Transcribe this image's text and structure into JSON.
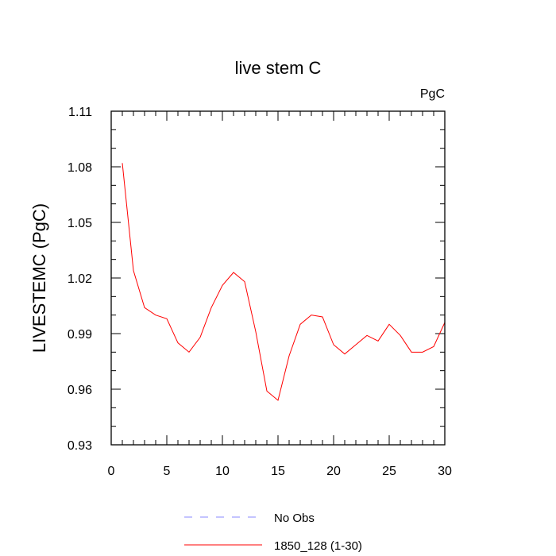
{
  "chart_data": {
    "type": "line",
    "title": "live stem C",
    "units_label": "PgC",
    "ylabel": "LIVESTEMC  (PgC)",
    "xlabel": "",
    "xlim": [
      0,
      30
    ],
    "ylim": [
      0.93,
      1.11
    ],
    "x_ticks": [
      0,
      5,
      10,
      15,
      20,
      25,
      30
    ],
    "y_ticks": [
      0.93,
      0.96,
      0.99,
      1.02,
      1.05,
      1.08,
      1.11
    ],
    "y_tick_labels": [
      "0.93",
      "0.96",
      "0.99",
      "1.02",
      "1.05",
      "1.08",
      "1.11"
    ],
    "grid": false,
    "legend_position": "bottom",
    "series": [
      {
        "name": "1850_128 (1-30)",
        "color": "#ff0000",
        "dash": "solid",
        "x": [
          1,
          2,
          3,
          4,
          5,
          6,
          7,
          8,
          9,
          10,
          11,
          12,
          13,
          14,
          15,
          16,
          17,
          18,
          19,
          20,
          21,
          22,
          23,
          24,
          25,
          26,
          27,
          28,
          29,
          30
        ],
        "values": [
          1.082,
          1.024,
          1.004,
          1.0,
          0.998,
          0.985,
          0.98,
          0.988,
          1.004,
          1.016,
          1.023,
          1.018,
          0.991,
          0.959,
          0.954,
          0.978,
          0.995,
          1.0,
          0.999,
          0.984,
          0.979,
          0.984,
          0.989,
          0.986,
          0.995,
          0.989,
          0.98,
          0.98,
          0.983,
          0.996
        ]
      },
      {
        "name": "No Obs",
        "color": "#8888ff",
        "dash": "dashed",
        "x": [],
        "values": []
      }
    ]
  }
}
